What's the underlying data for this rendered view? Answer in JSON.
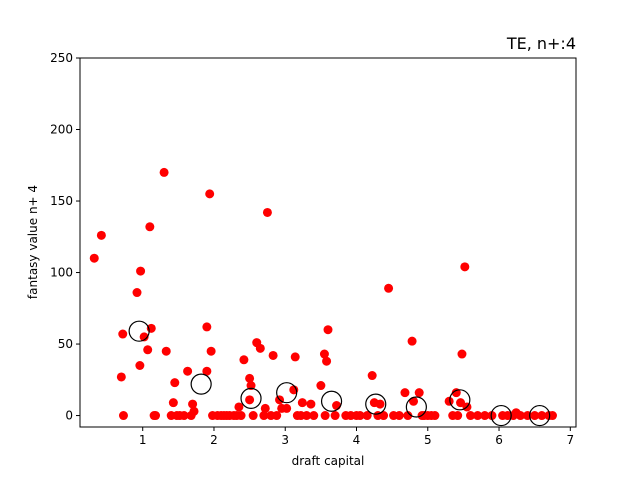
{
  "chart_data": {
    "type": "scatter",
    "title": "TE, n+:4",
    "xlabel": "draft capital",
    "ylabel": "fantasy value n+ 4",
    "xlim": [
      0.12,
      7.08
    ],
    "ylim": [
      -8,
      250
    ],
    "xticks": [
      1,
      2,
      3,
      4,
      5,
      6,
      7
    ],
    "yticks": [
      0,
      50,
      100,
      150,
      200,
      250
    ],
    "grid": false,
    "colors": {
      "points": "#ff0000",
      "means": "#000000"
    },
    "series": [
      {
        "marker": "filled-circle",
        "points": [
          [
            0.32,
            110
          ],
          [
            0.42,
            126
          ],
          [
            0.7,
            27
          ],
          [
            0.72,
            57
          ],
          [
            0.73,
            0
          ],
          [
            0.92,
            86
          ],
          [
            0.97,
            101
          ],
          [
            0.96,
            35
          ],
          [
            1.02,
            55
          ],
          [
            1.07,
            46
          ],
          [
            1.1,
            132
          ],
          [
            1.12,
            61
          ],
          [
            1.16,
            0
          ],
          [
            1.18,
            0
          ],
          [
            1.3,
            170
          ],
          [
            1.33,
            45
          ],
          [
            1.4,
            0
          ],
          [
            1.43,
            9
          ],
          [
            1.45,
            23
          ],
          [
            1.48,
            0
          ],
          [
            1.52,
            0
          ],
          [
            1.58,
            0
          ],
          [
            1.63,
            31
          ],
          [
            1.68,
            0
          ],
          [
            1.7,
            8
          ],
          [
            1.72,
            3
          ],
          [
            1.9,
            62
          ],
          [
            1.9,
            31
          ],
          [
            1.94,
            155
          ],
          [
            1.96,
            45
          ],
          [
            1.98,
            0
          ],
          [
            2.05,
            0
          ],
          [
            2.1,
            0
          ],
          [
            2.14,
            0
          ],
          [
            2.18,
            0
          ],
          [
            2.22,
            0
          ],
          [
            2.28,
            0
          ],
          [
            2.32,
            0
          ],
          [
            2.35,
            6
          ],
          [
            2.38,
            0
          ],
          [
            2.42,
            39
          ],
          [
            2.5,
            26
          ],
          [
            2.5,
            11
          ],
          [
            2.52,
            21
          ],
          [
            2.55,
            0
          ],
          [
            2.6,
            51
          ],
          [
            2.65,
            47
          ],
          [
            2.7,
            0
          ],
          [
            2.72,
            5
          ],
          [
            2.75,
            142
          ],
          [
            2.8,
            0
          ],
          [
            2.83,
            42
          ],
          [
            2.88,
            0
          ],
          [
            2.92,
            11
          ],
          [
            2.95,
            5
          ],
          [
            3.02,
            5
          ],
          [
            3.12,
            18
          ],
          [
            3.14,
            41
          ],
          [
            3.17,
            0
          ],
          [
            3.22,
            0
          ],
          [
            3.24,
            9
          ],
          [
            3.3,
            0
          ],
          [
            3.36,
            8
          ],
          [
            3.4,
            0
          ],
          [
            3.5,
            21
          ],
          [
            3.55,
            43
          ],
          [
            3.58,
            38
          ],
          [
            3.6,
            60
          ],
          [
            3.56,
            0
          ],
          [
            3.7,
            0
          ],
          [
            3.72,
            7
          ],
          [
            3.85,
            0
          ],
          [
            3.92,
            0
          ],
          [
            4.0,
            0
          ],
          [
            4.05,
            0
          ],
          [
            4.15,
            0
          ],
          [
            4.22,
            28
          ],
          [
            4.25,
            9
          ],
          [
            4.3,
            0
          ],
          [
            4.33,
            8
          ],
          [
            4.38,
            0
          ],
          [
            4.45,
            89
          ],
          [
            4.52,
            0
          ],
          [
            4.6,
            0
          ],
          [
            4.68,
            16
          ],
          [
            4.72,
            0
          ],
          [
            4.78,
            52
          ],
          [
            4.8,
            10
          ],
          [
            4.88,
            16
          ],
          [
            4.92,
            0
          ],
          [
            4.95,
            0
          ],
          [
            5.0,
            0
          ],
          [
            5.05,
            0
          ],
          [
            5.1,
            0
          ],
          [
            5.3,
            10
          ],
          [
            5.35,
            0
          ],
          [
            5.4,
            16
          ],
          [
            5.42,
            0
          ],
          [
            5.46,
            9
          ],
          [
            5.48,
            43
          ],
          [
            5.52,
            104
          ],
          [
            5.55,
            6
          ],
          [
            5.6,
            0
          ],
          [
            5.7,
            0
          ],
          [
            5.8,
            0
          ],
          [
            5.9,
            0
          ],
          [
            6.05,
            0
          ],
          [
            6.12,
            0
          ],
          [
            6.2,
            0
          ],
          [
            6.24,
            2
          ],
          [
            6.3,
            0
          ],
          [
            6.4,
            0
          ],
          [
            6.5,
            0
          ],
          [
            6.6,
            0
          ],
          [
            6.7,
            0
          ],
          [
            6.75,
            0
          ]
        ]
      },
      {
        "marker": "open-circle",
        "points": [
          [
            0.95,
            59
          ],
          [
            1.82,
            22
          ],
          [
            2.52,
            12
          ],
          [
            3.02,
            16
          ],
          [
            3.65,
            10
          ],
          [
            4.27,
            8
          ],
          [
            4.84,
            6
          ],
          [
            5.45,
            11
          ],
          [
            6.03,
            0
          ],
          [
            6.57,
            0
          ]
        ]
      }
    ]
  }
}
